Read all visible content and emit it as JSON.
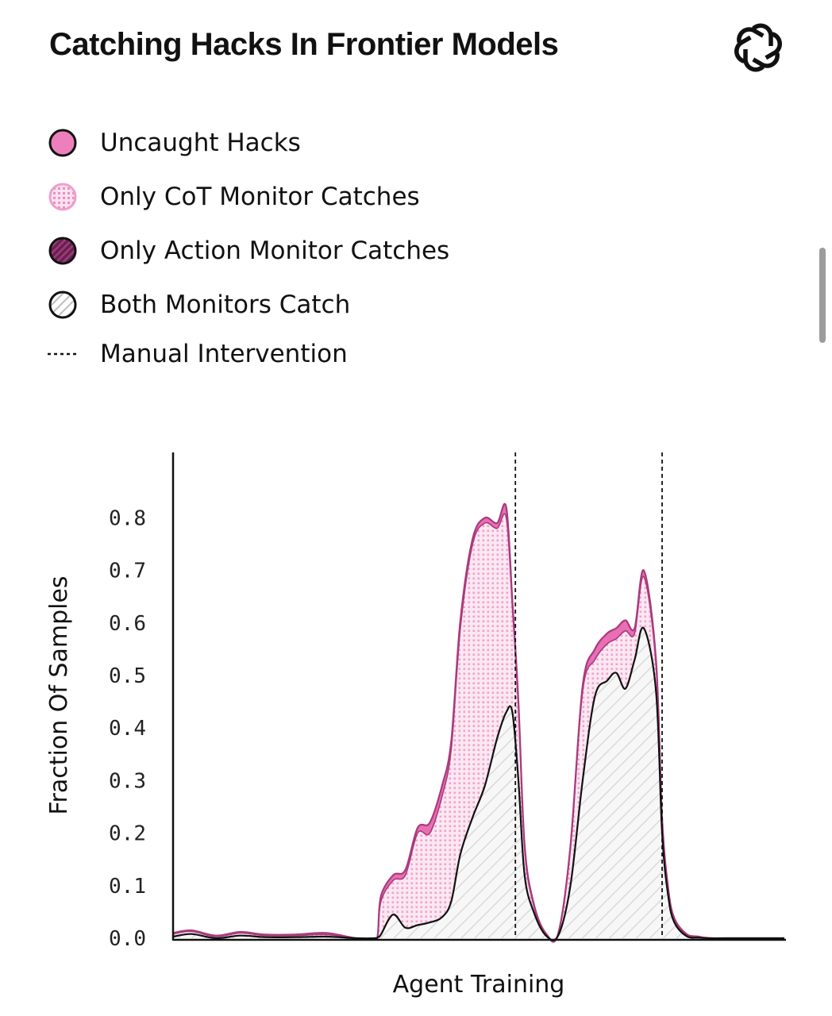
{
  "title": "Catching Hacks In Frontier Models",
  "legend": [
    {
      "label": "Uncaught Hacks",
      "icon": "solid-pink-circle"
    },
    {
      "label": "Only CoT Monitor Catches",
      "icon": "dotted-pink-circle"
    },
    {
      "label": "Only Action Monitor Catches",
      "icon": "striped-purple-circle"
    },
    {
      "label": "Both Monitors Catch",
      "icon": "hatched-white-circle"
    },
    {
      "label": "Manual Intervention",
      "icon": "dotted-line"
    }
  ],
  "colors": {
    "uncaught": "#e86fb4",
    "cot_only": "#f2a6cf",
    "action_only": "#7a2a5e",
    "both": "#f3f3f3",
    "stroke_top": "#a93a7c",
    "stroke_both": "#111111"
  },
  "chart_data": {
    "type": "area",
    "title": "Catching Hacks In Frontier Models",
    "xlabel": "Agent Training",
    "ylabel": "Fraction Of Samples",
    "ylim": [
      0,
      0.9
    ],
    "yticks": [
      "0.0",
      "0.1",
      "0.2",
      "0.3",
      "0.4",
      "0.5",
      "0.6",
      "0.7",
      "0.8"
    ],
    "xlim": [
      0,
      1
    ],
    "grid": false,
    "stacking": "cumulative",
    "manual_interventions": [
      0.56,
      0.8
    ],
    "x": [
      0,
      0.03,
      0.07,
      0.11,
      0.15,
      0.2,
      0.25,
      0.3,
      0.33,
      0.335,
      0.34,
      0.36,
      0.38,
      0.4,
      0.42,
      0.44,
      0.455,
      0.47,
      0.49,
      0.51,
      0.53,
      0.545,
      0.555,
      0.565,
      0.575,
      0.59,
      0.61,
      0.63,
      0.65,
      0.67,
      0.69,
      0.71,
      0.725,
      0.74,
      0.755,
      0.77,
      0.79,
      0.8,
      0.81,
      0.82,
      0.84,
      0.86,
      0.88,
      0.91,
      1.0
    ],
    "series": [
      {
        "name": "Both Monitors Catch",
        "values": [
          0.003,
          0.008,
          0.0,
          0.005,
          0.002,
          0.002,
          0.003,
          0.0,
          0.0,
          0.002,
          0.007,
          0.045,
          0.02,
          0.025,
          0.03,
          0.04,
          0.07,
          0.16,
          0.23,
          0.29,
          0.38,
          0.43,
          0.43,
          0.3,
          0.12,
          0.05,
          0.005,
          0.005,
          0.1,
          0.3,
          0.46,
          0.49,
          0.505,
          0.475,
          0.53,
          0.59,
          0.47,
          0.2,
          0.08,
          0.03,
          0.004,
          0.001,
          0.0,
          0.0,
          0.0
        ]
      },
      {
        "name": "Only Action Monitor Catches",
        "values": [
          0.0,
          0.0,
          0.0,
          0.0,
          0.0,
          0.0,
          0.0,
          0.0,
          0.0,
          0.0,
          0.0,
          0.0,
          0.0,
          0.0,
          0.0,
          0.0,
          0.0,
          0.0,
          0.0,
          0.0,
          0.0,
          0.0,
          0.0,
          0.0,
          0.0,
          0.0,
          0.0,
          0.0,
          0.0,
          0.0,
          0.0,
          0.0,
          0.0,
          0.0,
          0.0,
          0.0,
          0.0,
          0.0,
          0.0,
          0.0,
          0.0,
          0.0,
          0.0,
          0.0,
          0.0
        ]
      },
      {
        "name": "Only CoT Monitor Catches",
        "values": [
          0.005,
          0.005,
          0.003,
          0.005,
          0.003,
          0.003,
          0.004,
          0.0,
          0.0,
          0.004,
          0.063,
          0.065,
          0.1,
          0.175,
          0.17,
          0.23,
          0.29,
          0.43,
          0.52,
          0.5,
          0.4,
          0.37,
          0.2,
          0.14,
          0.05,
          0.012,
          0.002,
          0.002,
          0.07,
          0.17,
          0.07,
          0.07,
          0.065,
          0.11,
          0.05,
          0.098,
          0.05,
          0.02,
          0.01,
          0.005,
          0.002,
          0.001,
          0.0,
          0.0,
          0.0
        ]
      },
      {
        "name": "Uncaught Hacks",
        "values": [
          0.002,
          0.002,
          0.002,
          0.002,
          0.002,
          0.002,
          0.003,
          0.0,
          0.0,
          0.002,
          0.01,
          0.01,
          0.01,
          0.01,
          0.02,
          0.02,
          0.015,
          0.015,
          0.01,
          0.01,
          0.01,
          0.02,
          0.012,
          0.01,
          0.008,
          0.004,
          0.002,
          0.002,
          0.005,
          0.01,
          0.02,
          0.02,
          0.02,
          0.02,
          0.01,
          0.012,
          0.01,
          0.008,
          0.005,
          0.003,
          0.002,
          0.001,
          0.0,
          0.0,
          0.0
        ]
      }
    ]
  }
}
